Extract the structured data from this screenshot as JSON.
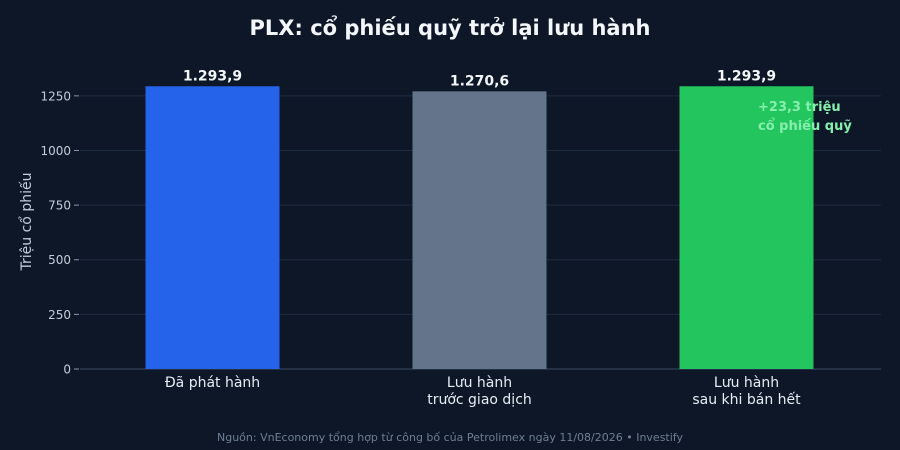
{
  "chart_data": {
    "type": "bar",
    "title": "PLX: cổ phiếu quỹ trở lại lưu hành",
    "ylabel": "Triệu cổ phiếu",
    "xlabel": "",
    "ylim": [
      0,
      1350
    ],
    "yticks": [
      0,
      250,
      500,
      750,
      1000,
      1250
    ],
    "categories": [
      [
        "Đã phát hành"
      ],
      [
        "Lưu hành",
        "trước giao dịch"
      ],
      [
        "Lưu hành",
        "sau khi bán hết"
      ]
    ],
    "values": [
      1293.9,
      1270.6,
      1293.9
    ],
    "value_labels": [
      "1.293,9",
      "1.270,6",
      "1.293,9"
    ],
    "colors": [
      "#2563eb",
      "#64748b",
      "#22c55e"
    ],
    "annotation": [
      "+23,3 triệu",
      "cổ phiếu quỹ"
    ],
    "annotation_color": "#86efac",
    "grid": true,
    "legend": "none"
  },
  "source": "Nguồn: VnEconomy tổng hợp từ công bố của Petrolimex ngày 11/08/2026 • Investify"
}
